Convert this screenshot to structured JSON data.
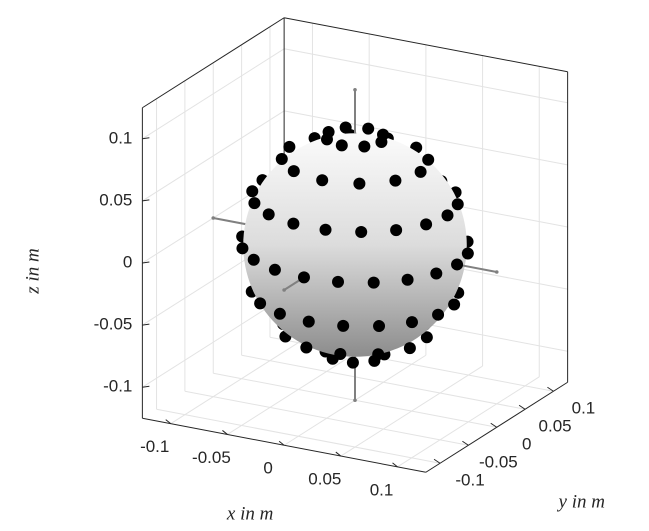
{
  "chart_data": {
    "type": "scatter3d",
    "xlabel": "x in m",
    "ylabel": "y in m",
    "zlabel": "z in m",
    "xlim": [
      -0.125,
      0.125
    ],
    "ylim": [
      -0.125,
      0.125
    ],
    "zlim": [
      -0.125,
      0.125
    ],
    "xticks": [
      -0.1,
      -0.05,
      0,
      0.05,
      0.1
    ],
    "yticks": [
      -0.1,
      -0.05,
      0,
      0.05,
      0.1
    ],
    "zticks": [
      -0.1,
      -0.05,
      0,
      0.05,
      0.1
    ],
    "grid": true,
    "sphere_radius": 0.09,
    "stem_length": 0.125,
    "marker_color": "#000000",
    "rings": [
      {
        "elevation": 75,
        "azimuths": [
          0,
          45,
          90,
          135,
          180,
          225,
          270,
          315
        ]
      },
      {
        "elevation": 50,
        "azimuths": [
          0,
          30,
          60,
          90,
          120,
          150,
          180,
          210,
          240,
          270,
          300,
          330
        ]
      },
      {
        "elevation": 25,
        "azimuths": [
          0,
          20,
          40,
          60,
          80,
          100,
          120,
          140,
          160,
          180,
          200,
          220,
          240,
          260,
          280,
          300,
          320,
          340
        ]
      },
      {
        "elevation": 0,
        "azimuths": [
          0,
          18,
          36,
          54,
          72,
          90,
          108,
          126,
          144,
          162,
          180,
          198,
          216,
          234,
          252,
          270,
          288,
          306,
          324,
          342
        ]
      },
      {
        "elevation": -25,
        "azimuths": [
          10,
          30,
          50,
          70,
          90,
          110,
          130,
          150,
          170,
          190,
          210,
          230,
          250,
          270,
          290,
          310,
          330,
          350
        ]
      },
      {
        "elevation": -50,
        "azimuths": [
          15,
          45,
          75,
          105,
          135,
          165,
          195,
          225,
          255,
          285,
          315,
          345
        ]
      },
      {
        "elevation": -75,
        "azimuths": [
          22.5,
          67.5,
          112.5,
          157.5,
          202.5,
          247.5,
          292.5,
          337.5
        ]
      }
    ]
  }
}
